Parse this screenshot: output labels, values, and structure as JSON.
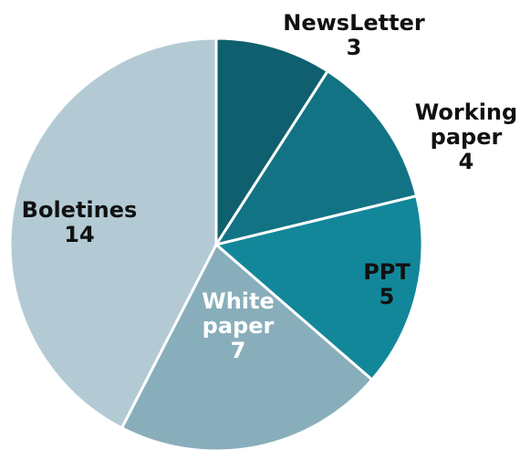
{
  "chart_data": {
    "type": "pie",
    "slices": [
      {
        "label_lines": [
          "NewsLetter"
        ],
        "value": 3,
        "color": "#0f5f6e"
      },
      {
        "label_lines": [
          "Working",
          "paper"
        ],
        "value": 4,
        "color": "#117384"
      },
      {
        "label_lines": [
          "PPT"
        ],
        "value": 5,
        "color": "#13879a"
      },
      {
        "label_lines": [
          "White",
          "paper"
        ],
        "value": 7,
        "color": "#89aebb"
      },
      {
        "label_lines": [
          "Boletines"
        ],
        "value": 14,
        "color": "#b3cad4"
      }
    ],
    "start_angle_deg": 0,
    "direction": "clockwise",
    "legend": "none",
    "labels_position": "on-slice-and-outside"
  }
}
